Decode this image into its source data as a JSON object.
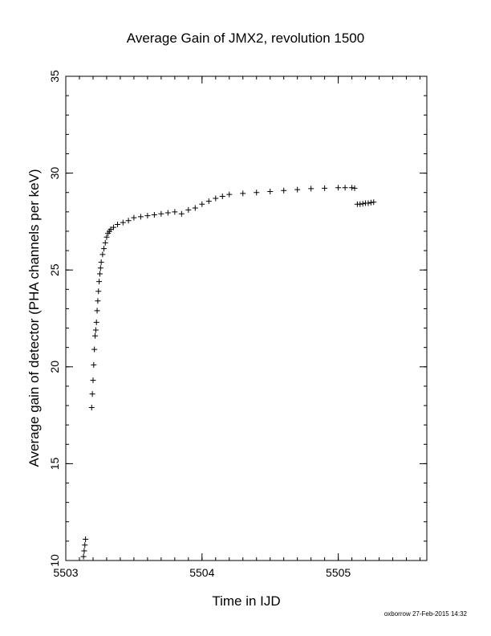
{
  "chart_data": {
    "type": "scatter",
    "title": "Average Gain of JMX2, revolution 1500",
    "xlabel": "Time in IJD",
    "ylabel": "Average gain of detector (PHA channels per keV)",
    "xlim": [
      5503,
      5505.65
    ],
    "ylim": [
      10,
      35
    ],
    "xticks": [
      5503,
      5504,
      5505
    ],
    "yticks": [
      10,
      15,
      20,
      25,
      30,
      35
    ],
    "marker": "+",
    "marker_color": "#000000",
    "series": [
      {
        "x": [
          5503.13,
          5503.135,
          5503.14,
          5503.145,
          5503.19,
          5503.195,
          5503.2,
          5503.205,
          5503.21,
          5503.215,
          5503.22,
          5503.225,
          5503.23,
          5503.235,
          5503.24,
          5503.245,
          5503.25,
          5503.255,
          5503.26,
          5503.27,
          5503.28,
          5503.29,
          5503.3,
          5503.31,
          5503.32,
          5503.33,
          5503.35,
          5503.38,
          5503.42,
          5503.46,
          5503.5,
          5503.55,
          5503.6,
          5503.65,
          5503.7,
          5503.75,
          5503.8,
          5503.85,
          5503.9,
          5503.95,
          5504.0,
          5504.05,
          5504.1,
          5504.15,
          5504.2,
          5504.3,
          5504.4,
          5504.5,
          5504.6,
          5504.7,
          5504.8,
          5504.9,
          5505.0,
          5505.05,
          5505.1,
          5505.12,
          5505.14,
          5505.16,
          5505.18,
          5505.2,
          5505.22,
          5505.24,
          5505.26
        ],
        "y": [
          10.2,
          10.5,
          10.8,
          11.1,
          17.9,
          18.6,
          19.3,
          20.1,
          20.9,
          21.6,
          21.9,
          22.3,
          22.9,
          23.4,
          23.9,
          24.4,
          24.8,
          25.1,
          25.4,
          25.8,
          26.1,
          26.4,
          26.7,
          26.9,
          27.0,
          27.1,
          27.2,
          27.35,
          27.45,
          27.55,
          27.7,
          27.75,
          27.8,
          27.85,
          27.9,
          27.95,
          28.0,
          27.9,
          28.1,
          28.2,
          28.4,
          28.55,
          28.7,
          28.8,
          28.9,
          28.95,
          29.0,
          29.05,
          29.1,
          29.15,
          29.2,
          29.22,
          29.25,
          29.25,
          29.25,
          29.22,
          28.4,
          28.4,
          28.42,
          28.45,
          28.45,
          28.48,
          28.5
        ]
      }
    ]
  },
  "footer": "oxborrow 27-Feb-2015 14:32"
}
